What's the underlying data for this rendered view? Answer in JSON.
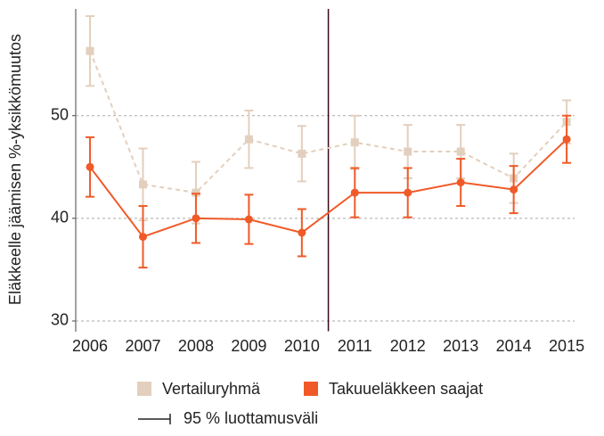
{
  "chart_data": {
    "type": "line",
    "y_label": "Eläkkeelle jäämisen %-yksikkömuutos",
    "x": [
      2006,
      2007,
      2008,
      2009,
      2010,
      2011,
      2012,
      2013,
      2014,
      2015
    ],
    "xlim": [
      2005.73,
      2015.15
    ],
    "xticks": [
      2006,
      2007,
      2008,
      2009,
      2010,
      2011,
      2012,
      2013,
      2014,
      2015
    ],
    "ylim": [
      29,
      60.4
    ],
    "yticks": [
      30,
      40,
      50
    ],
    "grid": true,
    "vline_x": 2010.5,
    "vline_color": "#3a0a14",
    "series": [
      {
        "name": "Vertailuryhmä",
        "color": "#e3cfbd",
        "marker": "square",
        "dashed": true,
        "values": [
          56.3,
          43.3,
          42.5,
          47.7,
          46.3,
          47.4,
          46.5,
          46.5,
          43.9,
          49.4
        ],
        "errors": [
          3.4,
          3.5,
          3.0,
          2.8,
          2.7,
          2.6,
          2.6,
          2.6,
          2.4,
          2.1
        ]
      },
      {
        "name": "Takuueläkkeen saajat",
        "color": "#f05a28",
        "marker": "circle",
        "dashed": false,
        "values": [
          45.0,
          38.2,
          40.0,
          39.9,
          38.6,
          42.5,
          42.5,
          43.5,
          42.8,
          47.7
        ],
        "errors": [
          2.9,
          3.0,
          2.4,
          2.4,
          2.3,
          2.4,
          2.4,
          2.3,
          2.3,
          2.3
        ]
      }
    ],
    "ci_legend": "95 % luottamusväli"
  }
}
